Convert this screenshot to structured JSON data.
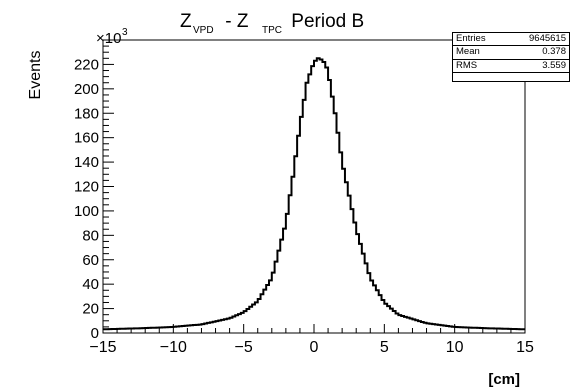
{
  "chart_data": {
    "type": "histogram",
    "title": {
      "main": "Z",
      "sub1": "VPD",
      "mid": " - Z",
      "sub2": "TPC",
      "tail": " Period B"
    },
    "xlabel": "[cm]",
    "ylabel": "Events",
    "y_multiplier": {
      "base": "×10",
      "exp": "3"
    },
    "xlim": [
      -15,
      15
    ],
    "ylim": [
      0,
      240
    ],
    "x_ticks": [
      -15,
      -10,
      -5,
      0,
      5,
      10,
      15
    ],
    "x_tick_labels": [
      "−15",
      "−10",
      "−5",
      "0",
      "5",
      "10",
      "15"
    ],
    "y_ticks": [
      0,
      20,
      40,
      60,
      80,
      100,
      120,
      140,
      160,
      180,
      200,
      220
    ],
    "y_tick_labels": [
      "0",
      "20",
      "40",
      "60",
      "80",
      "100",
      "120",
      "140",
      "160",
      "180",
      "200",
      "220"
    ],
    "bin_width": 0.2,
    "shape_note_values": {
      "peak_x": 0.45,
      "peak_y": 225,
      "baseline_y": 4
    },
    "series": [
      {
        "name": "",
        "x": [
          -15,
          -12,
          -10,
          -8,
          -6,
          -5,
          -4,
          -3,
          -2,
          -1.5,
          -1,
          -0.5,
          0,
          0.3,
          0.5,
          0.8,
          1,
          1.5,
          2,
          3,
          4,
          5,
          6,
          8,
          10,
          12,
          15
        ],
        "y": [
          3,
          4,
          5,
          7,
          12,
          17,
          26,
          45,
          90,
          128,
          170,
          205,
          222,
          225,
          224,
          221,
          214,
          180,
          140,
          85,
          45,
          25,
          15,
          8,
          5,
          4,
          3
        ]
      }
    ],
    "grid": false,
    "stats": [
      {
        "label": "Entries",
        "value": "9645615"
      },
      {
        "label": "Mean",
        "value": "0.378"
      },
      {
        "label": "RMS",
        "value": "3.559"
      }
    ]
  }
}
